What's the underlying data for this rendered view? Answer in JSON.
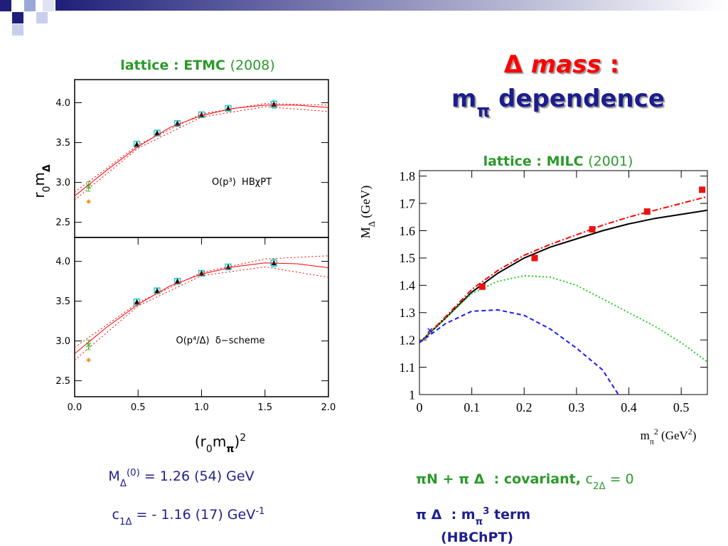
{
  "header": {
    "title": [
      {
        "text": "Δ "
      },
      {
        "text": "mass",
        "italic": true
      },
      {
        "text": " :"
      }
    ],
    "subtitle": [
      {
        "text": "m"
      },
      {
        "text": "π",
        "sub": true
      },
      {
        "text": " dependence"
      }
    ]
  },
  "chart_data": [
    {
      "type": "scatter",
      "title": [
        {
          "text": "lattice : ETMC ",
          "bold": true
        },
        {
          "text": "(2008)"
        }
      ],
      "ylabel": [
        {
          "text": "r"
        },
        {
          "text": "0",
          "sub": true
        },
        {
          "text": "m"
        },
        {
          "text": "Δ",
          "sub": true,
          "bold": true
        }
      ],
      "annotation": "O(p³)  HBχPT",
      "xlim": [
        0,
        2
      ],
      "ylim": [
        2.31,
        4.29
      ],
      "yticks": [
        2.5,
        {
          "value": 3,
          "label": "3.0"
        },
        3.5,
        {
          "value": 4,
          "label": "4.0"
        }
      ],
      "series": [
        {
          "marker": "triangle",
          "color": "#000000",
          "box_color": "#33cccc",
          "x": [
            0.49,
            0.65,
            0.81,
            1.0,
            1.21,
            1.57
          ],
          "values": [
            3.48,
            3.62,
            3.74,
            3.85,
            3.93,
            3.98
          ],
          "errors": [
            0.04,
            0.03,
            0.03,
            0.03,
            0.03,
            0.05
          ]
        },
        {
          "marker": "x",
          "color": "#33cc33",
          "x": [
            0.11
          ],
          "values": [
            2.95
          ],
          "errors": [
            0.06
          ]
        },
        {
          "marker": "star",
          "color": "#ff8c1a",
          "x": [
            0.11
          ],
          "values": [
            2.76
          ],
          "errors": [
            0
          ]
        },
        {
          "type": "line",
          "style": "solid",
          "color": "#ff0000",
          "x": [
            0,
            0.25,
            0.5,
            0.75,
            1,
            1.25,
            1.5,
            1.75,
            2
          ],
          "values": [
            2.83,
            3.15,
            3.45,
            3.69,
            3.84,
            3.93,
            3.97,
            3.97,
            3.94
          ]
        },
        {
          "type": "line",
          "style": "dotted",
          "color": "#ff0000",
          "x": [
            0,
            0.5,
            1,
            1.5,
            2
          ],
          "values": [
            2.88,
            3.47,
            3.86,
            3.99,
            3.97
          ]
        },
        {
          "type": "line",
          "style": "dotted",
          "color": "#ff0000",
          "x": [
            0,
            0.5,
            1,
            1.5,
            2
          ],
          "values": [
            2.78,
            3.43,
            3.82,
            3.95,
            3.89
          ]
        }
      ]
    },
    {
      "type": "scatter",
      "xlabel": [
        {
          "text": "(r"
        },
        {
          "text": "0",
          "sub": true
        },
        {
          "text": "m"
        },
        {
          "text": "π",
          "sub": true,
          "bold": true
        },
        {
          "text": ")"
        },
        {
          "text": "2",
          "sup": true
        }
      ],
      "annotation": "O(p⁴/Δ)  δ−scheme",
      "xlim": [
        0,
        2
      ],
      "ylim": [
        2.3,
        4.3
      ],
      "xticks": [
        {
          "value": 0,
          "label": "0.0"
        },
        0.5,
        {
          "value": 1,
          "label": "1.0"
        },
        1.5,
        {
          "value": 2,
          "label": "2.0"
        }
      ],
      "yticks": [
        2.5,
        {
          "value": 3,
          "label": "3.0"
        },
        3.5,
        {
          "value": 4,
          "label": "4.0"
        }
      ],
      "series": [
        {
          "marker": "triangle",
          "color": "#000000",
          "box_color": "#33cccc",
          "x": [
            0.49,
            0.65,
            0.81,
            1.0,
            1.21,
            1.57
          ],
          "values": [
            3.49,
            3.63,
            3.75,
            3.85,
            3.93,
            3.98
          ],
          "errors": [
            0.04,
            0.03,
            0.03,
            0.03,
            0.03,
            0.05
          ]
        },
        {
          "marker": "x",
          "color": "#33cc33",
          "x": [
            0.11
          ],
          "values": [
            2.95
          ],
          "errors": [
            0.06
          ]
        },
        {
          "marker": "star",
          "color": "#ff8c1a",
          "x": [
            0.11
          ],
          "values": [
            2.76
          ],
          "errors": [
            0
          ]
        },
        {
          "type": "line",
          "style": "solid",
          "color": "#ff0000",
          "x": [
            0,
            0.25,
            0.5,
            0.75,
            1,
            1.25,
            1.5,
            1.75,
            2
          ],
          "values": [
            2.84,
            3.17,
            3.46,
            3.69,
            3.84,
            3.93,
            3.98,
            3.97,
            3.92
          ]
        },
        {
          "type": "line",
          "style": "dotted",
          "color": "#ff0000",
          "x": [
            0,
            0.5,
            1,
            1.5,
            2
          ],
          "values": [
            2.92,
            3.48,
            3.86,
            4.03,
            4.07
          ]
        },
        {
          "type": "line",
          "style": "dotted",
          "color": "#ff0000",
          "x": [
            0,
            0.5,
            1,
            1.5,
            2
          ],
          "values": [
            2.76,
            3.44,
            3.82,
            3.93,
            3.8
          ]
        }
      ]
    },
    {
      "type": "scatter",
      "title": [
        {
          "text": "lattice : MILC ",
          "bold": true
        },
        {
          "text": "(2001)"
        }
      ],
      "ylabel": [
        {
          "text": "M"
        },
        {
          "text": "Δ",
          "sub": true
        },
        {
          "text": " (GeV)"
        }
      ],
      "xlabel": [
        {
          "text": "m"
        },
        {
          "text": "π",
          "sub": true
        },
        {
          "text": "2",
          "sup": true
        },
        {
          "text": " (GeV"
        },
        {
          "text": "2",
          "sup": true
        },
        {
          "text": ")"
        }
      ],
      "xlim": [
        0,
        0.55
      ],
      "ylim": [
        1,
        1.82
      ],
      "xticks": [
        0,
        0.1,
        0.2,
        0.3,
        0.4,
        0.5
      ],
      "yticks": [
        1,
        1.1,
        1.2,
        1.3,
        1.4,
        1.5,
        1.6,
        1.7,
        1.8
      ],
      "series": [
        {
          "type": "line",
          "style": "solid",
          "color": "#000000",
          "x": [
            0,
            0.05,
            0.1,
            0.15,
            0.2,
            0.25,
            0.3,
            0.35,
            0.4,
            0.45,
            0.5,
            0.55
          ],
          "values": [
            1.19,
            1.28,
            1.375,
            1.445,
            1.5,
            1.54,
            1.57,
            1.6,
            1.625,
            1.645,
            1.66,
            1.675
          ]
        },
        {
          "type": "line",
          "style": "dashdot",
          "color": "#ff0000",
          "x": [
            0,
            0.05,
            0.1,
            0.15,
            0.2,
            0.25,
            0.3,
            0.35,
            0.4,
            0.45,
            0.5,
            0.55
          ],
          "values": [
            1.19,
            1.285,
            1.385,
            1.455,
            1.51,
            1.55,
            1.585,
            1.62,
            1.65,
            1.675,
            1.7,
            1.725
          ]
        },
        {
          "type": "line",
          "style": "dotted",
          "color": "#22cc22",
          "x": [
            0,
            0.05,
            0.1,
            0.15,
            0.2,
            0.25,
            0.3,
            0.35,
            0.4,
            0.45,
            0.5,
            0.55
          ],
          "values": [
            1.19,
            1.28,
            1.37,
            1.415,
            1.435,
            1.43,
            1.4,
            1.35,
            1.3,
            1.25,
            1.19,
            1.12
          ]
        },
        {
          "type": "line",
          "style": "dashed",
          "color": "#1a1aff",
          "x": [
            0,
            0.05,
            0.1,
            0.15,
            0.2,
            0.25,
            0.3,
            0.35,
            0.38
          ],
          "values": [
            1.19,
            1.26,
            1.305,
            1.31,
            1.29,
            1.24,
            1.17,
            1.09,
            1.0
          ]
        },
        {
          "marker": "square",
          "color": "#ee1111",
          "x": [
            0.12,
            0.22,
            0.33,
            0.435,
            0.54
          ],
          "values": [
            1.395,
            1.5,
            1.605,
            1.67,
            1.75
          ]
        },
        {
          "marker": "x",
          "color": "#1a1aff",
          "x": [
            0.02
          ],
          "values": [
            1.235
          ]
        }
      ]
    }
  ],
  "notes": {
    "mass": [
      {
        "text": "M"
      },
      {
        "text": "Δ",
        "sub": true
      },
      {
        "text": "(0)",
        "sup": true
      },
      {
        "text": " = 1.26 (54) GeV"
      }
    ],
    "c1": [
      {
        "text": "c"
      },
      {
        "text": "1Δ",
        "sub": true
      },
      {
        "text": " = - 1.16 (17) GeV"
      },
      {
        "text": "-1",
        "sup": true
      }
    ],
    "covariant": [
      {
        "text": "πN + π Δ  : covariant, ",
        "bold": true
      },
      {
        "text": "c"
      },
      {
        "text": "2Δ",
        "sub": true
      },
      {
        "text": " = 0"
      }
    ],
    "term": [
      {
        "text": "π Δ  : m",
        "bold": true
      },
      {
        "text": "π",
        "sub": true,
        "bold": true
      },
      {
        "text": "3",
        "sup": true,
        "bold": true
      },
      {
        "text": " term",
        "bold": true
      }
    ],
    "hbchpt": "(HBChPT)"
  }
}
